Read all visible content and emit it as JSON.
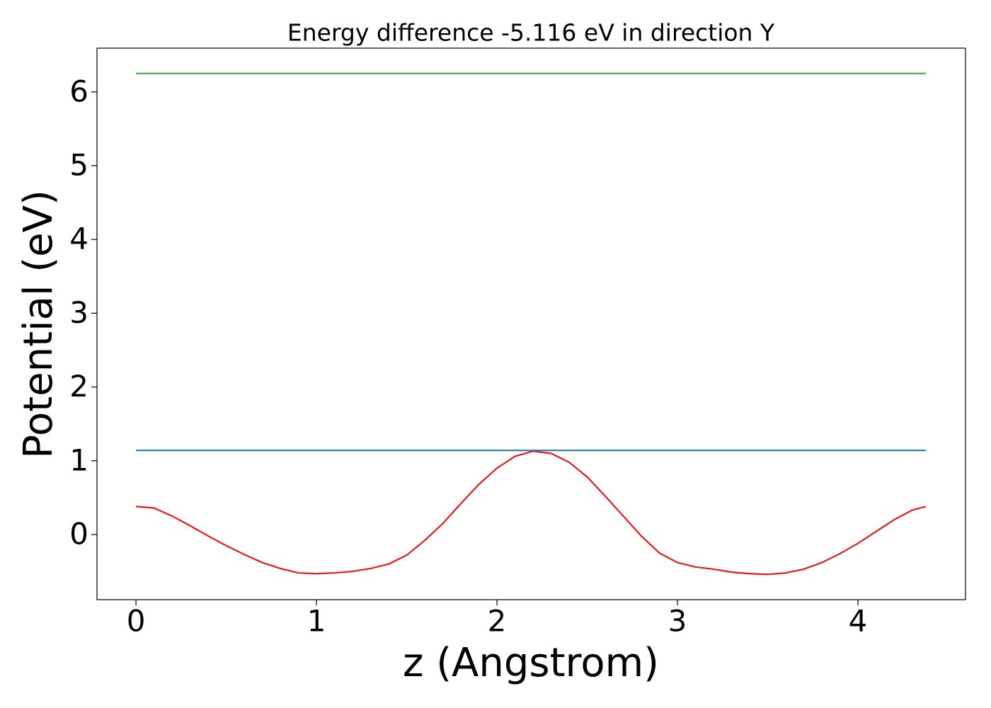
{
  "chart_data": {
    "type": "line",
    "title": "Energy difference -5.116 eV in direction Y",
    "x_label": "z (Angstrom)",
    "y_label": "Potential (eV)",
    "xlim": [
      -0.216,
      4.596
    ],
    "ylim": [
      -0.883,
      6.593
    ],
    "xticks": [
      0,
      1,
      2,
      3,
      4
    ],
    "yticks": [
      0,
      1,
      2,
      3,
      4,
      5,
      6
    ],
    "grid": false,
    "series": [
      {
        "color": "#e41a1c",
        "x": [
          0,
          0.1,
          0.2,
          0.3,
          0.4,
          0.5,
          0.6,
          0.7,
          0.8,
          0.9,
          1.0,
          1.1,
          1.2,
          1.3,
          1.4,
          1.5,
          1.6,
          1.7,
          1.8,
          1.9,
          2.0,
          2.1,
          2.2,
          2.3,
          2.4,
          2.5,
          2.6,
          2.7,
          2.8,
          2.9,
          3.0,
          3.1,
          3.2,
          3.3,
          3.4,
          3.5,
          3.6,
          3.7,
          3.8,
          3.9,
          4.0,
          4.1,
          4.2,
          4.3,
          4.376
        ],
        "values": [
          0.38,
          0.36,
          0.25,
          0.12,
          -0.02,
          -0.15,
          -0.27,
          -0.38,
          -0.46,
          -0.52,
          -0.53,
          -0.52,
          -0.5,
          -0.46,
          -0.4,
          -0.28,
          -0.08,
          0.15,
          0.42,
          0.68,
          0.9,
          1.06,
          1.13,
          1.1,
          0.98,
          0.78,
          0.52,
          0.25,
          -0.02,
          -0.25,
          -0.38,
          -0.44,
          -0.47,
          -0.51,
          -0.53,
          -0.54,
          -0.52,
          -0.47,
          -0.38,
          -0.26,
          -0.12,
          0.04,
          0.2,
          0.33,
          0.38
        ]
      },
      {
        "color": "#4daf4a",
        "x": [
          0,
          4.376
        ],
        "values": [
          6.25,
          6.25
        ]
      },
      {
        "color": "#2a7ab7",
        "x": [
          0,
          4.376
        ],
        "values": [
          1.14,
          1.14
        ]
      }
    ]
  }
}
